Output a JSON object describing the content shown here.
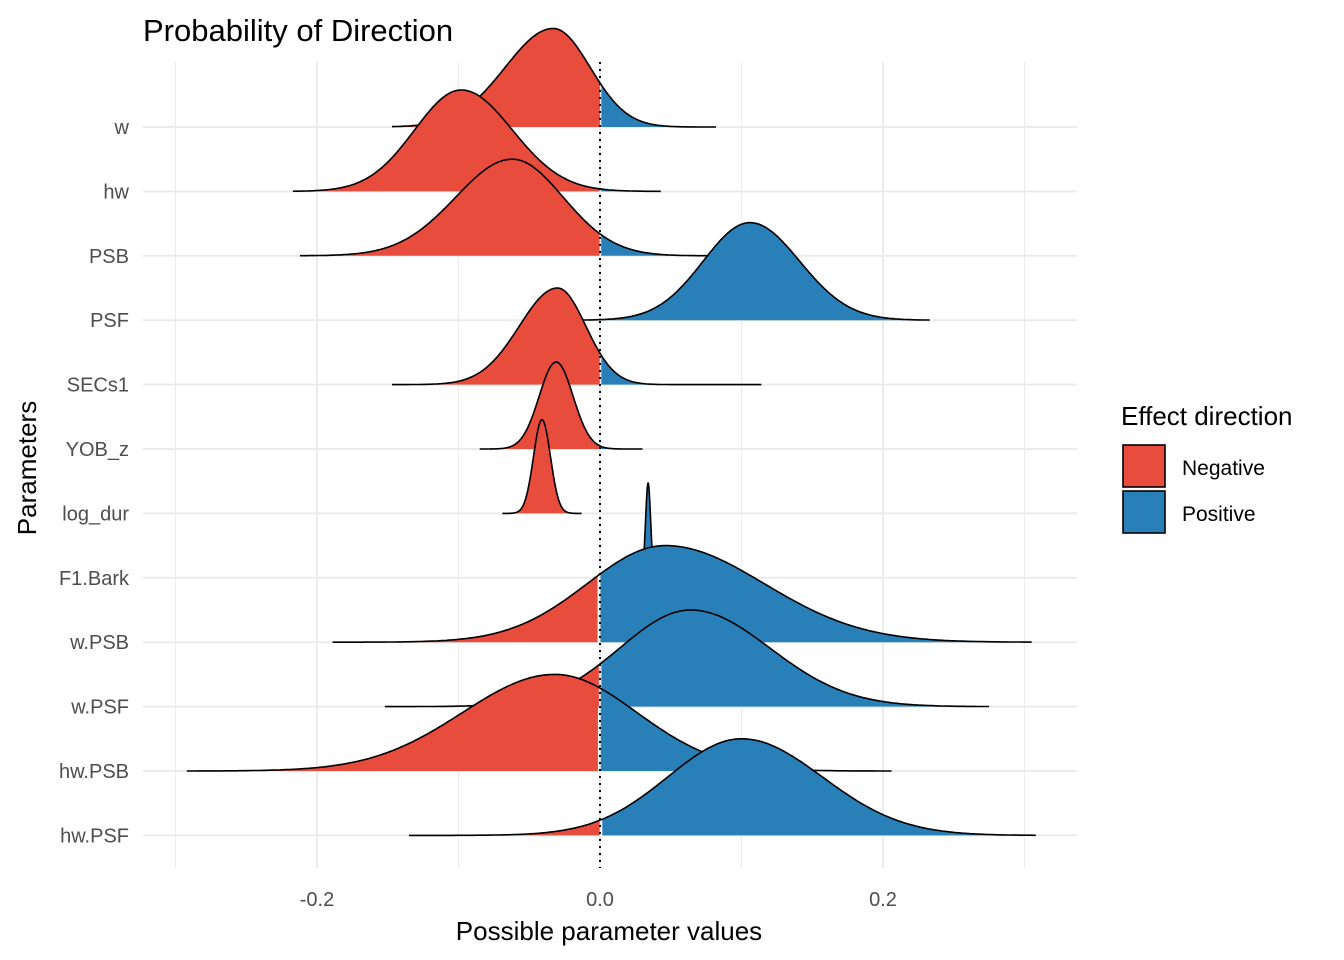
{
  "chart_data": {
    "type": "ridgeline-density",
    "title": "Probability of Direction",
    "xlabel": "Possible parameter values",
    "ylabel": "Parameters",
    "xlim": [
      -0.3,
      0.335
    ],
    "x_ticks": [
      {
        "value": -0.2,
        "label": "-0.2"
      },
      {
        "value": 0.0,
        "label": "0.0"
      },
      {
        "value": 0.2,
        "label": "0.2"
      }
    ],
    "minor_x_gridlines": [
      -0.3,
      -0.1,
      0.1,
      0.3
    ],
    "reference_line": {
      "x": 0,
      "style": "dotted"
    },
    "grid": true,
    "legend": {
      "title": "Effect direction",
      "position": "right",
      "items": [
        {
          "label": "Negative",
          "color": "#E74C3C"
        },
        {
          "label": "Positive",
          "color": "#2980B9"
        }
      ]
    },
    "series": [
      {
        "name": "w",
        "mode": -0.033,
        "min": -0.147,
        "max": 0.082,
        "height": 1.02,
        "sd_left": 0.034,
        "sd_right": 0.026
      },
      {
        "name": "hw",
        "mode": -0.098,
        "min": -0.217,
        "max": 0.043,
        "height": 1.05,
        "sd_left": 0.033,
        "sd_right": 0.036
      },
      {
        "name": "PSB",
        "mode": -0.062,
        "min": -0.212,
        "max": 0.085,
        "height": 1.0,
        "sd_left": 0.04,
        "sd_right": 0.036
      },
      {
        "name": "PSF",
        "mode": 0.106,
        "min": -0.033,
        "max": 0.233,
        "height": 1.01,
        "sd_left": 0.033,
        "sd_right": 0.035
      },
      {
        "name": "SECs1",
        "mode": -0.03,
        "min": -0.147,
        "max": 0.114,
        "height": 1.0,
        "sd_left": 0.027,
        "sd_right": 0.02
      },
      {
        "name": "YOB_z",
        "mode": -0.031,
        "min": -0.085,
        "max": 0.03,
        "height": 0.9,
        "sd_left": 0.012,
        "sd_right": 0.012
      },
      {
        "name": "log_dur",
        "mode": -0.041,
        "min": -0.069,
        "max": -0.013,
        "height": 0.97,
        "sd_left": 0.006,
        "sd_right": 0.006
      },
      {
        "name": "F1.Bark",
        "mode": 0.034,
        "min": 0.027,
        "max": 0.04,
        "height": 0.98,
        "sd_left": 0.0018,
        "sd_right": 0.0018
      },
      {
        "name": "w.PSB",
        "mode": 0.046,
        "min": -0.189,
        "max": 0.305,
        "height": 1.0,
        "sd_left": 0.055,
        "sd_right": 0.07
      },
      {
        "name": "w.PSF",
        "mode": 0.064,
        "min": -0.152,
        "max": 0.275,
        "height": 1.0,
        "sd_left": 0.05,
        "sd_right": 0.056
      },
      {
        "name": "hw.PSB",
        "mode": -0.032,
        "min": -0.292,
        "max": 0.206,
        "height": 1.0,
        "sd_left": 0.065,
        "sd_right": 0.058
      },
      {
        "name": "hw.PSF",
        "mode": 0.1,
        "min": -0.135,
        "max": 0.308,
        "height": 1.0,
        "sd_left": 0.052,
        "sd_right": 0.057
      }
    ]
  }
}
